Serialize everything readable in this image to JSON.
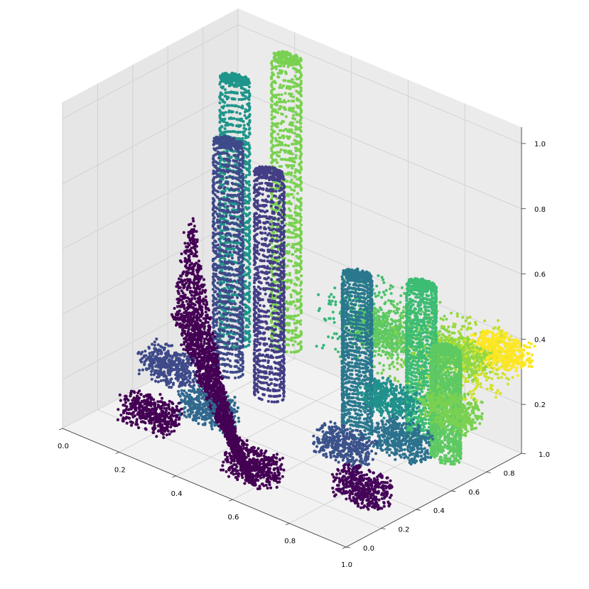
{
  "chart_data": {
    "type": "scatter",
    "title": "",
    "xlabel": "",
    "ylabel": "",
    "zlabel": "",
    "xlim": [
      0,
      1
    ],
    "ylim": [
      0,
      1
    ],
    "zlim": [
      0.05,
      1.05
    ],
    "xticks": [
      {
        "value": 0.0,
        "label": "0.0"
      },
      {
        "value": 0.2,
        "label": "0.2"
      },
      {
        "value": 0.4,
        "label": "0.4"
      },
      {
        "value": 0.6,
        "label": "0.6"
      },
      {
        "value": 0.8,
        "label": "0.8"
      },
      {
        "value": 1.0,
        "label": "1.0"
      }
    ],
    "yticks": [
      {
        "value": 0.0,
        "label": "0.0"
      },
      {
        "value": 0.2,
        "label": "0.2"
      },
      {
        "value": 0.4,
        "label": "0.4"
      },
      {
        "value": 0.6,
        "label": "0.6"
      },
      {
        "value": 0.8,
        "label": "0.8"
      },
      {
        "value": 1.0,
        "label": "1.0"
      }
    ],
    "zticks": [
      {
        "value": 0.2,
        "label": "0.2"
      },
      {
        "value": 0.4,
        "label": "0.4"
      },
      {
        "value": 0.6,
        "label": "0.6"
      },
      {
        "value": 0.8,
        "label": "0.8"
      },
      {
        "value": 1.0,
        "label": "1.0"
      }
    ],
    "grid": true,
    "colormap": "viridis",
    "colormap_stops": [
      "#440154",
      "#482878",
      "#3e4989",
      "#31688e",
      "#26828e",
      "#1f9e89",
      "#35b779",
      "#6ece58",
      "#b5de2b",
      "#fde725"
    ],
    "pane_color": "#f2f2f2",
    "grid_color": "#d0d0d0",
    "description_of_data": "Point cloud of a city block: several tall cylindrical towers plus a low ground-level scan",
    "towers": [
      {
        "x": 0.1,
        "y": 0.82,
        "z_max": 0.92,
        "color": "#1f958b"
      },
      {
        "x": 0.22,
        "y": 0.92,
        "z_max": 1.0,
        "color": "#7ad151"
      },
      {
        "x": 0.2,
        "y": 0.62,
        "z_max": 0.82,
        "color": "#3e4a89"
      },
      {
        "x": 0.37,
        "y": 0.58,
        "z_max": 0.8,
        "color": "#433e85"
      },
      {
        "x": 0.68,
        "y": 0.58,
        "z_max": 0.6,
        "color": "#2a788e"
      },
      {
        "x": 0.82,
        "y": 0.72,
        "z_max": 0.58,
        "color": "#3dbc74"
      },
      {
        "x": 0.95,
        "y": 0.65,
        "z_max": 0.45,
        "color": "#5ec962"
      }
    ],
    "ground_clusters": [
      {
        "x": 0.2,
        "y": 0.18,
        "z": 0.12,
        "color": "#440154"
      },
      {
        "x": 0.6,
        "y": 0.12,
        "z": 0.12,
        "color": "#440154"
      },
      {
        "x": 0.92,
        "y": 0.22,
        "z": 0.14,
        "color": "#450559"
      },
      {
        "x": 0.78,
        "y": 0.35,
        "z": 0.18,
        "color": "#3b528b"
      },
      {
        "x": 0.92,
        "y": 0.45,
        "z": 0.22,
        "color": "#2c728e"
      },
      {
        "x": 0.78,
        "y": 0.6,
        "z": 0.25,
        "color": "#21918c"
      },
      {
        "x": 0.6,
        "y": 0.85,
        "z": 0.32,
        "color": "#5ec962"
      },
      {
        "x": 0.88,
        "y": 0.85,
        "z": 0.35,
        "color": "#8fd744"
      },
      {
        "x": 0.98,
        "y": 0.92,
        "z": 0.38,
        "color": "#fde725"
      },
      {
        "x": 1.0,
        "y": 0.6,
        "z": 0.3,
        "color": "#7ad151"
      },
      {
        "x": 0.1,
        "y": 0.45,
        "z": 0.15,
        "color": "#3e4a89"
      },
      {
        "x": 0.3,
        "y": 0.35,
        "z": 0.12,
        "color": "#31688e"
      }
    ]
  }
}
